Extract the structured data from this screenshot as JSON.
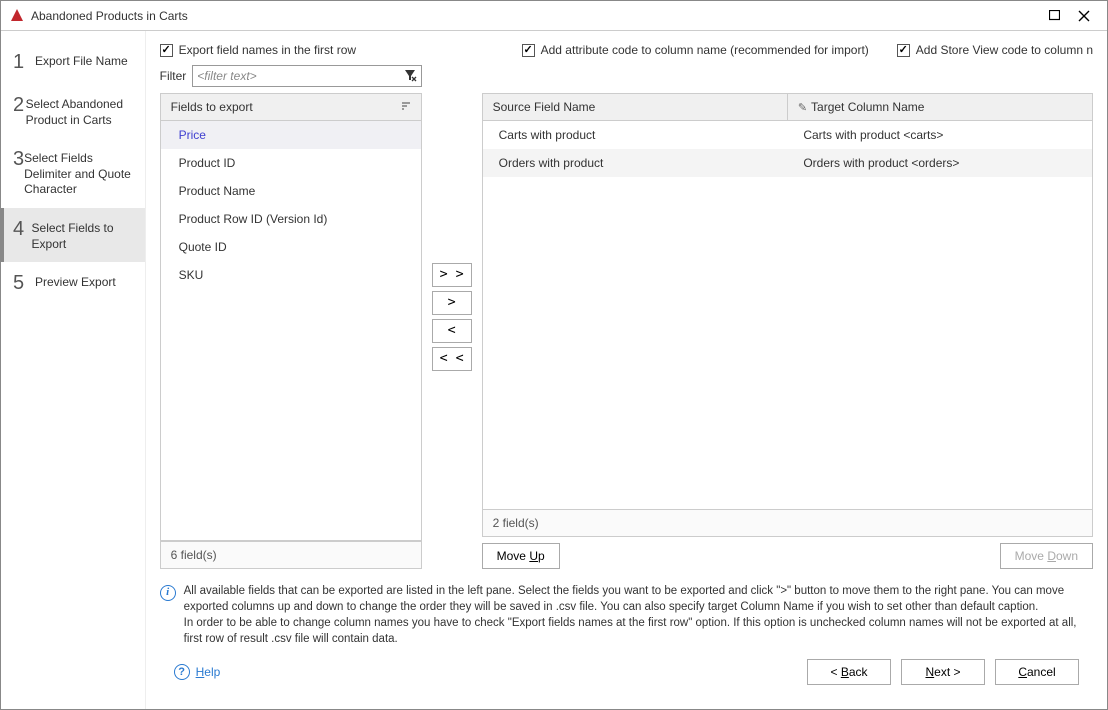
{
  "window": {
    "title": "Abandoned Products in Carts"
  },
  "steps": [
    {
      "num": "1",
      "label": "Export File Name"
    },
    {
      "num": "2",
      "label": "Select Abandoned Product in Carts"
    },
    {
      "num": "3",
      "label": "Select Fields Delimiter and Quote Character"
    },
    {
      "num": "4",
      "label": "Select Fields to Export"
    },
    {
      "num": "5",
      "label": "Preview Export"
    }
  ],
  "active_step": 3,
  "checkboxes": {
    "export_first_row": "Export field names in the  first row",
    "add_attr_code": "Add attribute code to column name (recommended for import)",
    "add_store_view": "Add Store View code to column n"
  },
  "filter": {
    "label": "Filter",
    "placeholder": "<filter text>"
  },
  "left_list": {
    "header": "Fields to export",
    "items": [
      "Price",
      "Product ID",
      "Product Name",
      "Product Row ID (Version Id)",
      "Quote ID",
      "SKU"
    ],
    "selected_index": 0,
    "footer": "6 field(s)"
  },
  "mid_buttons": {
    "add_all": "> >",
    "add": ">",
    "remove": "<",
    "remove_all": "< <"
  },
  "right_table": {
    "col1": "Source Field Name",
    "col2": "Target Column Name",
    "rows": [
      {
        "src": "Carts with product",
        "tgt": "Carts with product <carts>"
      },
      {
        "src": "Orders with product",
        "tgt": "Orders with product <orders>"
      }
    ],
    "footer": "2 field(s)"
  },
  "move": {
    "up_pre": "Move ",
    "up_u": "U",
    "up_post": "p",
    "down_pre": "Move ",
    "down_u": "D",
    "down_post": "own"
  },
  "info_text": "All available fields that can be exported are listed in the left pane. Select the fields you want to be exported and click \">\" button to move them to the right pane. You can move exported columns up and down to change the order they will be saved in .csv file. You can also specify target Column Name if you wish to set other than default caption.\nIn order to be able to change column names you have to check \"Export fields names at the first row\" option. If this option is unchecked column names will not be exported at all, first row of result .csv file will contain data.",
  "footer_btns": {
    "help_u": "H",
    "help_post": "elp",
    "back_pre": "< ",
    "back_u": "B",
    "back_post": "ack",
    "next_pre": "",
    "next_u": "N",
    "next_post": "ext >",
    "cancel_u": "C",
    "cancel_post": "ancel"
  }
}
